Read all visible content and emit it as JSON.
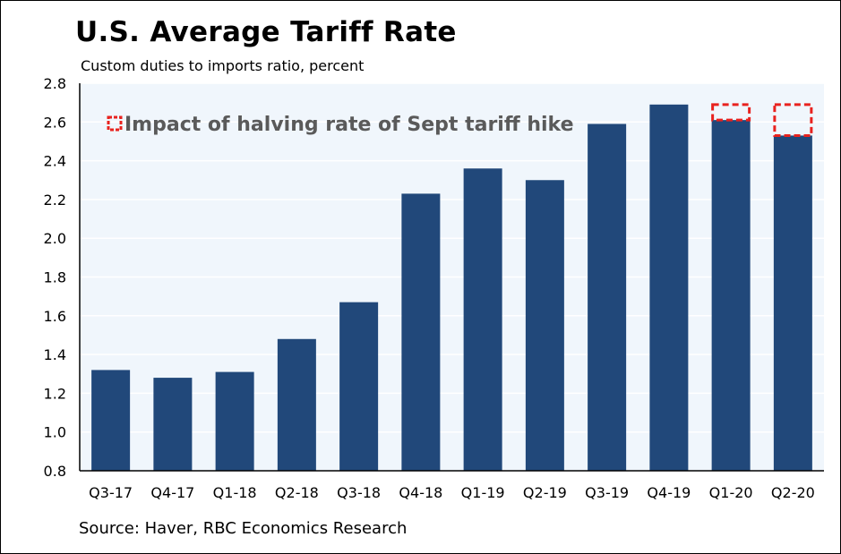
{
  "chart_data": {
    "type": "bar",
    "title": "U.S. Average Tariff Rate",
    "subtitle": "Custom duties to imports ratio, percent",
    "source": "Source: Haver, RBC Economics Research",
    "legend_label": "Impact of halving rate of Sept tariff hike",
    "legend_position": "top-left",
    "categories": [
      "Q3-17",
      "Q4-17",
      "Q1-18",
      "Q2-18",
      "Q3-18",
      "Q4-18",
      "Q1-19",
      "Q2-19",
      "Q3-19",
      "Q4-19",
      "Q1-20",
      "Q2-20"
    ],
    "values": [
      1.32,
      1.28,
      1.31,
      1.48,
      1.67,
      2.23,
      2.36,
      2.3,
      2.59,
      2.69,
      2.61,
      2.53
    ],
    "impact_tops": [
      null,
      null,
      null,
      null,
      null,
      null,
      null,
      null,
      null,
      null,
      2.69,
      2.69
    ],
    "ylim": [
      0.8,
      2.8
    ],
    "yticks": [
      "0.8",
      "1.0",
      "1.2",
      "1.4",
      "1.6",
      "1.8",
      "2.0",
      "2.2",
      "2.4",
      "2.6",
      "2.8"
    ],
    "xlabel": "",
    "ylabel": "",
    "grid": true,
    "colors": {
      "bar": "#21487A",
      "plot_bg": "#F0F6FC",
      "grid": "#FFFFFF",
      "impact": "#E8221E",
      "legend_text": "#5A5A5A"
    }
  }
}
